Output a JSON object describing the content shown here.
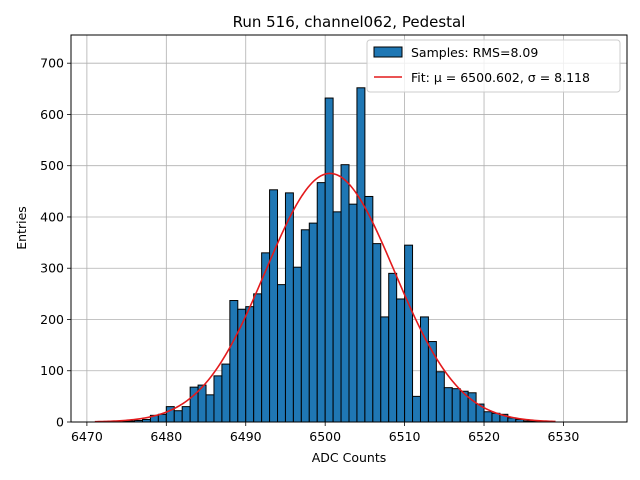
{
  "chart_data": {
    "type": "bar",
    "title": "Run 516, channel062, Pedestal",
    "xlabel": "ADC Counts",
    "ylabel": "Entries",
    "xlim": [
      6468,
      6538
    ],
    "ylim": [
      0,
      755
    ],
    "xticks": [
      6470,
      6480,
      6490,
      6500,
      6510,
      6520,
      6530
    ],
    "yticks": [
      0,
      100,
      200,
      300,
      400,
      500,
      600,
      700
    ],
    "grid": true,
    "legend_position": "top-right",
    "bin_width": 1,
    "bins": [
      {
        "x": 6474,
        "y": 1
      },
      {
        "x": 6475,
        "y": 2
      },
      {
        "x": 6476,
        "y": 3
      },
      {
        "x": 6477,
        "y": 5
      },
      {
        "x": 6478,
        "y": 13
      },
      {
        "x": 6479,
        "y": 15
      },
      {
        "x": 6480,
        "y": 30
      },
      {
        "x": 6481,
        "y": 22
      },
      {
        "x": 6482,
        "y": 30
      },
      {
        "x": 6483,
        "y": 68
      },
      {
        "x": 6484,
        "y": 72
      },
      {
        "x": 6485,
        "y": 53
      },
      {
        "x": 6486,
        "y": 90
      },
      {
        "x": 6487,
        "y": 113
      },
      {
        "x": 6488,
        "y": 237
      },
      {
        "x": 6489,
        "y": 220
      },
      {
        "x": 6490,
        "y": 225
      },
      {
        "x": 6491,
        "y": 250
      },
      {
        "x": 6492,
        "y": 330
      },
      {
        "x": 6493,
        "y": 453
      },
      {
        "x": 6494,
        "y": 268
      },
      {
        "x": 6495,
        "y": 447
      },
      {
        "x": 6496,
        "y": 302
      },
      {
        "x": 6497,
        "y": 375
      },
      {
        "x": 6498,
        "y": 388
      },
      {
        "x": 6499,
        "y": 467
      },
      {
        "x": 6500,
        "y": 632
      },
      {
        "x": 6501,
        "y": 410
      },
      {
        "x": 6502,
        "y": 502
      },
      {
        "x": 6503,
        "y": 425
      },
      {
        "x": 6504,
        "y": 652
      },
      {
        "x": 6505,
        "y": 440
      },
      {
        "x": 6506,
        "y": 348
      },
      {
        "x": 6507,
        "y": 205
      },
      {
        "x": 6508,
        "y": 290
      },
      {
        "x": 6509,
        "y": 240
      },
      {
        "x": 6510,
        "y": 345
      },
      {
        "x": 6511,
        "y": 50
      },
      {
        "x": 6512,
        "y": 205
      },
      {
        "x": 6513,
        "y": 157
      },
      {
        "x": 6514,
        "y": 98
      },
      {
        "x": 6515,
        "y": 67
      },
      {
        "x": 6516,
        "y": 65
      },
      {
        "x": 6517,
        "y": 60
      },
      {
        "x": 6518,
        "y": 57
      },
      {
        "x": 6519,
        "y": 35
      },
      {
        "x": 6520,
        "y": 20
      },
      {
        "x": 6521,
        "y": 17
      },
      {
        "x": 6522,
        "y": 15
      },
      {
        "x": 6523,
        "y": 8
      },
      {
        "x": 6524,
        "y": 5
      },
      {
        "x": 6525,
        "y": 2
      },
      {
        "x": 6526,
        "y": 1
      },
      {
        "x": 6527,
        "y": 1
      }
    ],
    "fit": {
      "mu": 6500.602,
      "sigma": 8.118,
      "amplitude": 485,
      "x_range": [
        6471,
        6529
      ]
    },
    "series": [
      {
        "name": "Samples: RMS=8.09",
        "kind": "histogram",
        "color": "#1f77b4",
        "edge_color": "#000000"
      },
      {
        "name": "Fit: μ = 6500.602, σ = 8.118",
        "kind": "line",
        "color": "#e31a1c"
      }
    ]
  }
}
